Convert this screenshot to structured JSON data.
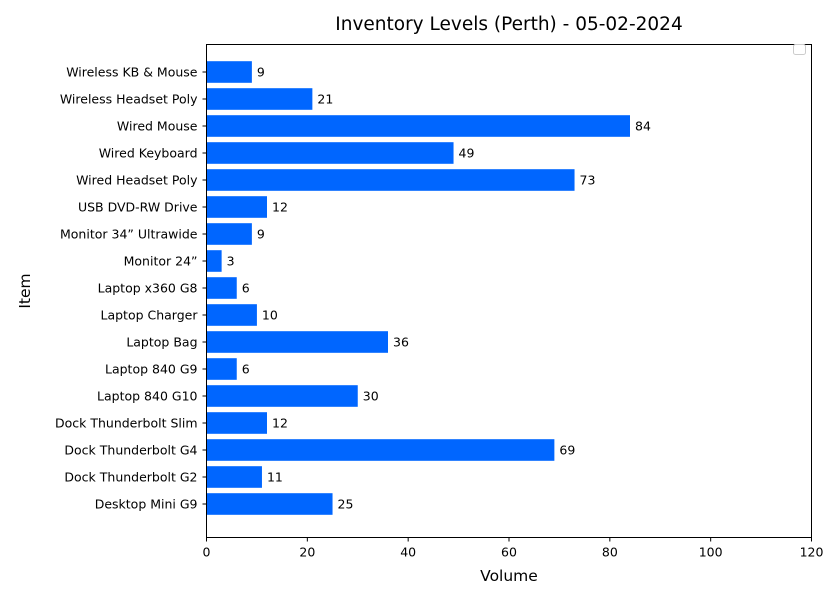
{
  "chart_data": {
    "type": "bar",
    "orientation": "horizontal",
    "title": "Inventory Levels (Perth) - 05-02-2024",
    "xlabel": "Volume",
    "ylabel": "Item",
    "xlim": [
      0,
      120
    ],
    "xticks": [
      0,
      20,
      40,
      60,
      80,
      100,
      120
    ],
    "grid": false,
    "legend": "top-right (empty)",
    "bar_color": "#0066ff",
    "categories": [
      "Desktop Mini G9",
      "Dock Thunderbolt G2",
      "Dock Thunderbolt G4",
      "Dock Thunderbolt Slim",
      "Laptop 840 G10",
      "Laptop 840 G9",
      "Laptop Bag",
      "Laptop Charger ",
      "Laptop x360 G8",
      "Monitor 24”",
      "Monitor 34” Ultrawide",
      "USB DVD-RW Drive",
      "Wired Headset Poly",
      "Wired Keyboard",
      "Wired Mouse",
      "Wireless Headset Poly ",
      "Wireless KB & Mouse"
    ],
    "values": [
      25,
      11,
      69,
      12,
      30,
      6,
      36,
      10,
      6,
      3,
      9,
      12,
      73,
      49,
      84,
      21,
      9
    ]
  }
}
